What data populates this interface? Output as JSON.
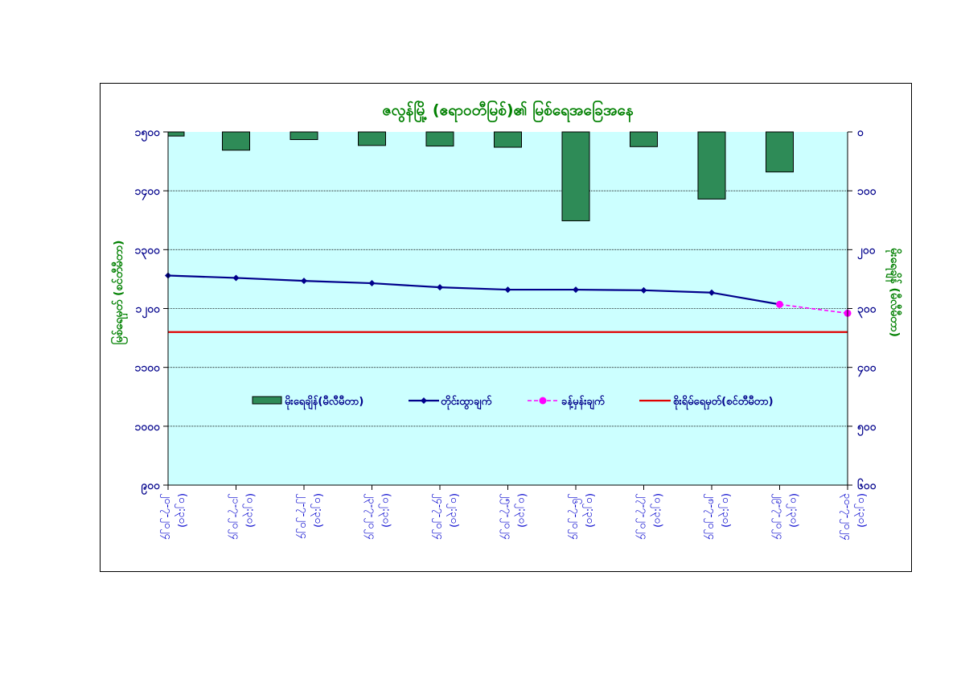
{
  "chart_data": {
    "type": "bar+line",
    "title": "ဇလွန်မြို့ (ဧရာဝတီမြစ်)၏ မြစ်ရေအခြေအနေ",
    "ylabel_left": "မြစ်ရေမှတ် (စင်တီမီတာ)",
    "ylabel_right": "မိုးရေချိန် (မီလီမီတာ)",
    "categories": [
      [
        "၂၀-၇-၂၀၂၄",
        "(၀၂:၃၀)"
      ],
      [
        "၂၁-၇-၂၀၂၄",
        "(၀၂:၃၀)"
      ],
      [
        "၂၂-၇-၂၀၂၄",
        "(၀၂:၃၀)"
      ],
      [
        "၂၃-၇-၂၀၂၄",
        "(၀၂:၃၀)"
      ],
      [
        "၂၄-၇-၂၀၂၄",
        "(၀၂:၃၀)"
      ],
      [
        "၂၅-၇-၂၀၂၄",
        "(၀၂:၃၀)"
      ],
      [
        "၂၆-၇-၂၀၂၄",
        "(၀၂:၃၀)"
      ],
      [
        "၂၇-၇-၂၀၂၄",
        "(၀၂:၃၀)"
      ],
      [
        "၂၈-၇-၂၀၂၄",
        "(၀၂:၃၀)"
      ],
      [
        "၂၉-၇-၂၀၂၄",
        "(၀၂:၃၀)"
      ],
      [
        "၃၀-၇-၂၀၂၄",
        "(၀၂:၃၀)"
      ]
    ],
    "y_left": {
      "min": 900,
      "max": 1500,
      "step": 100,
      "ticks": [
        "၉၀၀",
        "၁၀၀၀",
        "၁၁၀၀",
        "၁၂၀၀",
        "၁၃၀၀",
        "၁၄၀၀",
        "၁၅၀၀"
      ]
    },
    "y_right": {
      "min": 0,
      "max": 600,
      "step": 100,
      "reversed": true,
      "ticks": [
        "၀",
        "၁၀၀",
        "၂၀၀",
        "၃၀၀",
        "၄၀၀",
        "၅၀၀",
        "၆၀၀"
      ]
    },
    "series": [
      {
        "name": "မိုးရေချိန်(မီလီမီတာ)",
        "kind": "bar",
        "axis": "right",
        "color": "#2e8b57",
        "values": [
          7,
          31,
          13,
          23,
          24,
          26,
          151,
          25,
          114,
          68,
          null
        ]
      },
      {
        "name": "တိုင်းထွာချက်",
        "kind": "line",
        "axis": "left",
        "color": "#00008b",
        "values": [
          1256,
          1252,
          1247,
          1243,
          1236,
          1232,
          1232,
          1231,
          1227,
          1207,
          null
        ]
      },
      {
        "name": "ခန့်မှန်းချက်",
        "kind": "line-dashed",
        "axis": "left",
        "color": "#ff00ff",
        "values": [
          null,
          null,
          null,
          null,
          null,
          null,
          null,
          null,
          null,
          1207,
          1192
        ]
      },
      {
        "name": "စိုးရိမ်ရေမှတ်(စင်တီမီတာ)",
        "kind": "hline",
        "axis": "left",
        "color": "#e00000",
        "value": 1160
      }
    ],
    "grid": true,
    "legend_position": "center",
    "plot_background": "#ccffff"
  }
}
